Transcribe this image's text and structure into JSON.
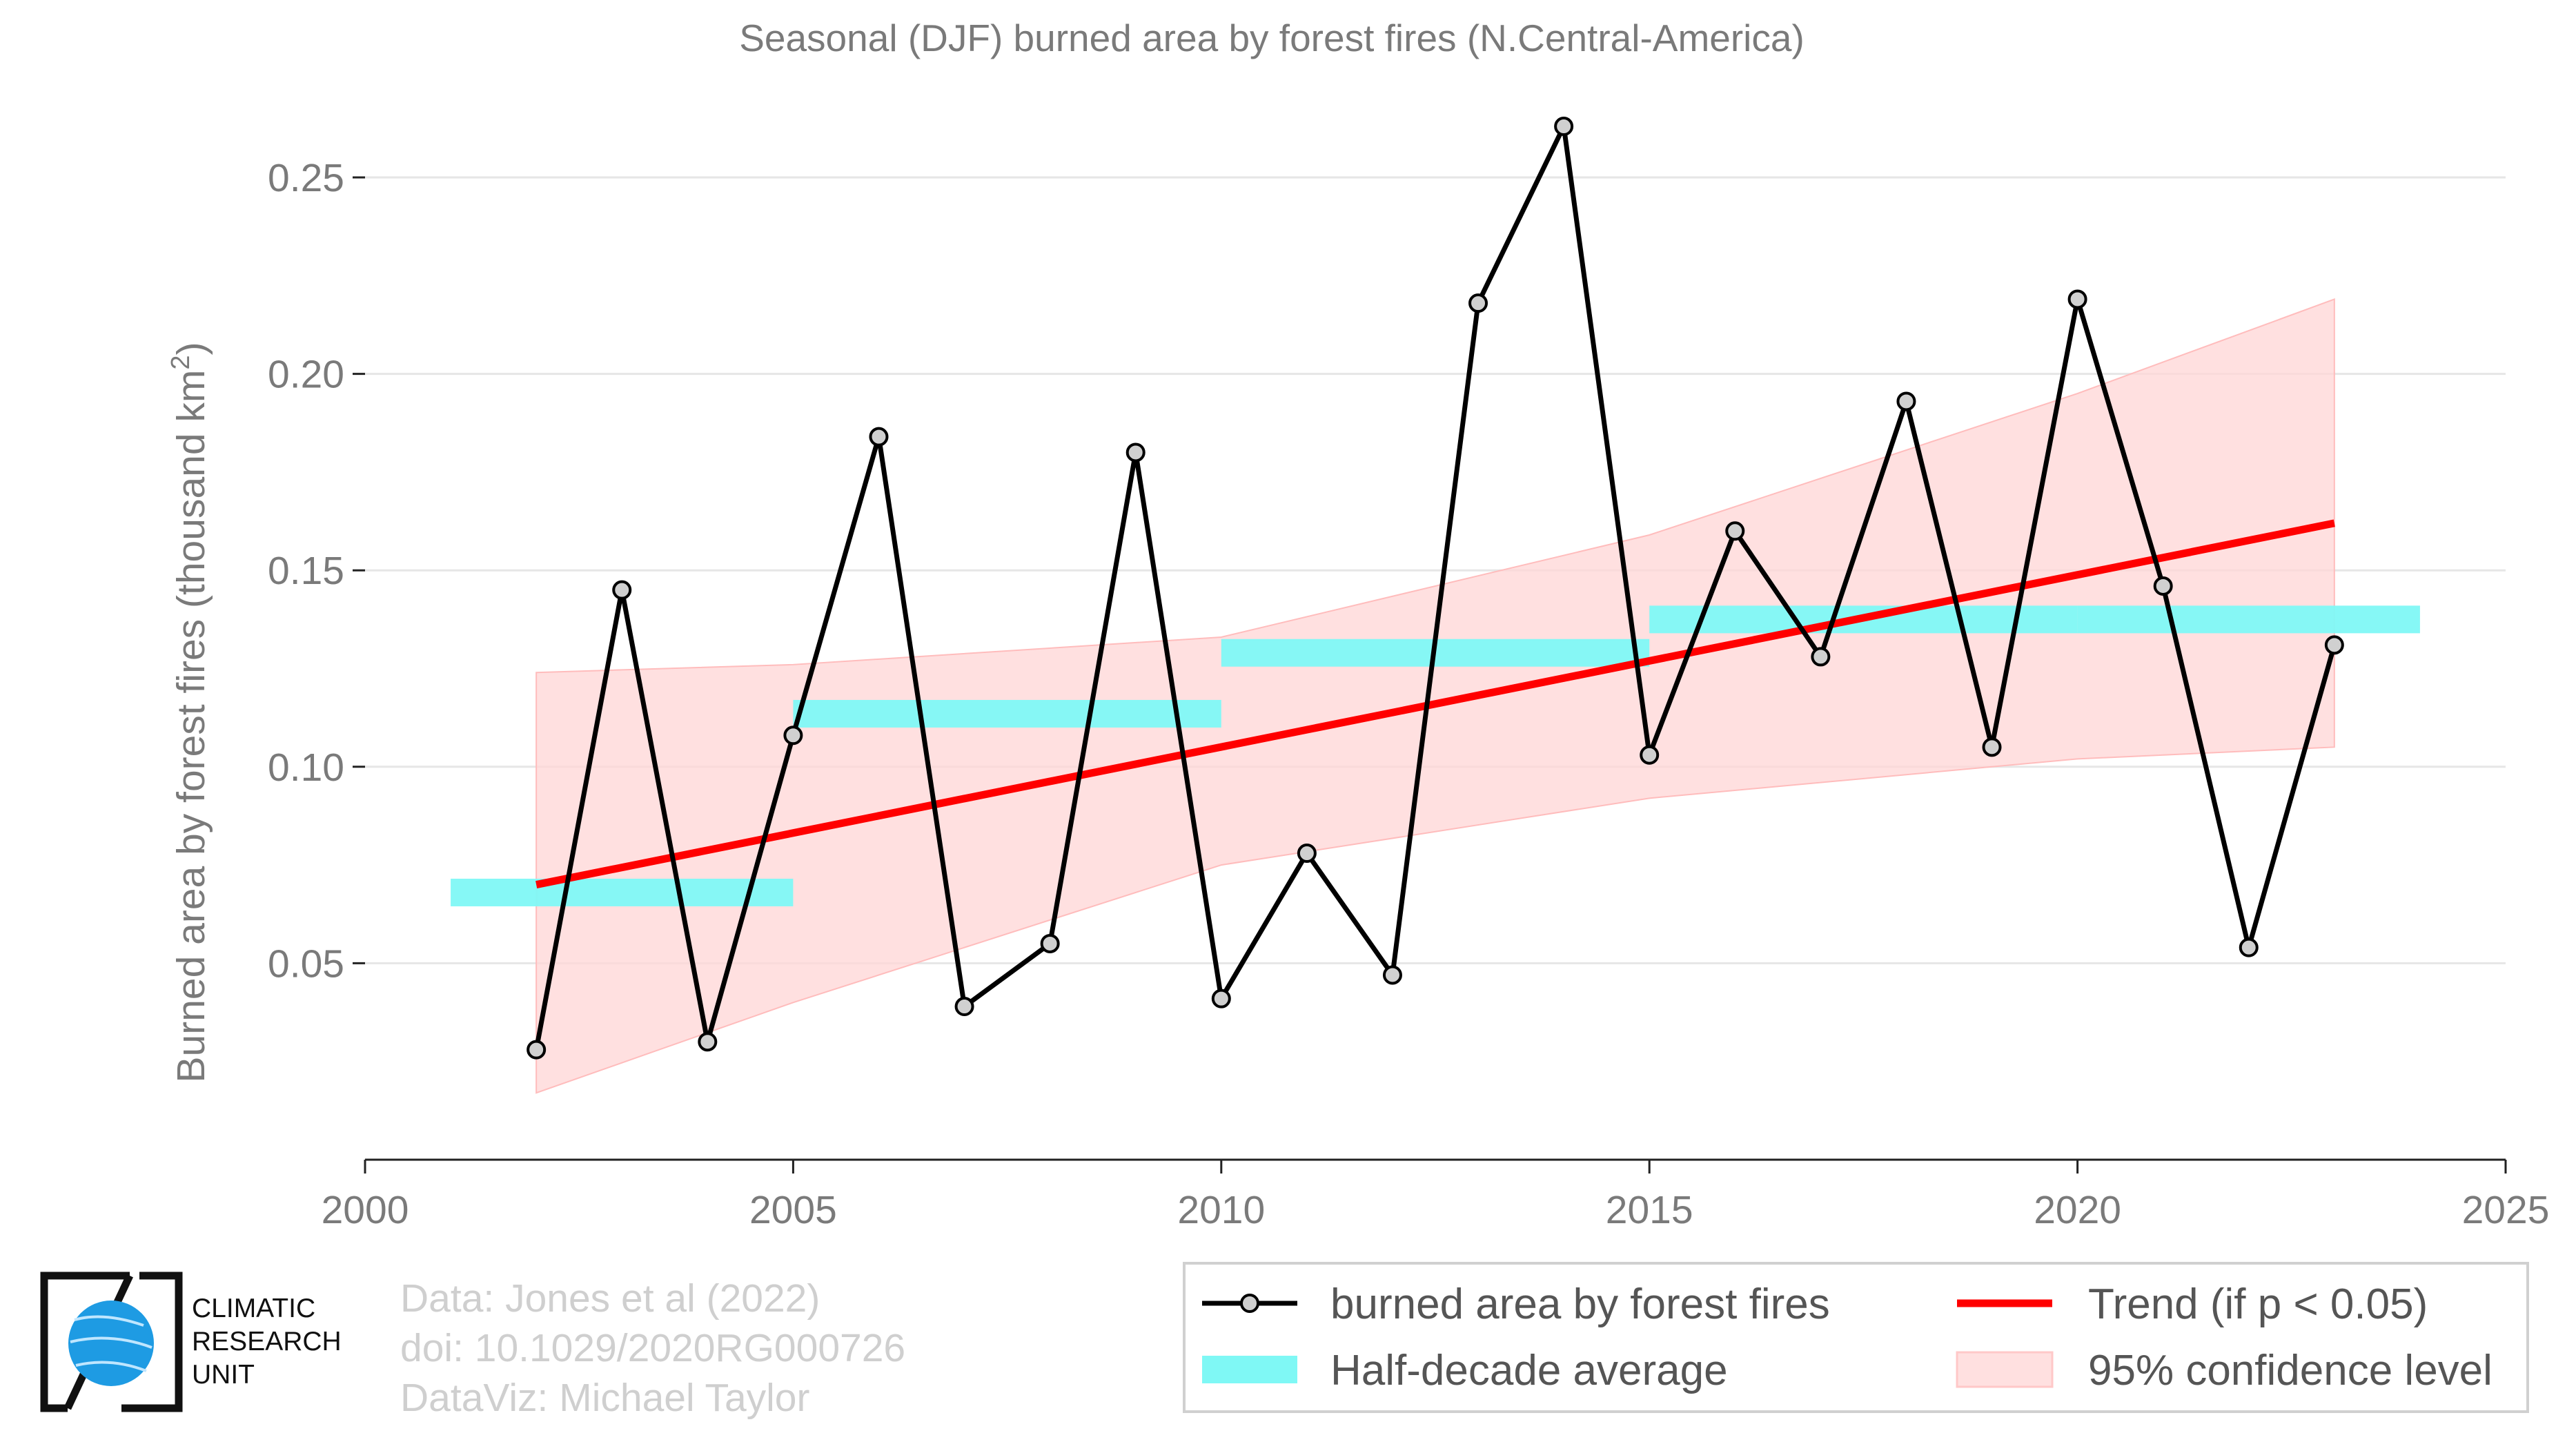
{
  "chart_data": {
    "type": "line",
    "title": "Seasonal (DJF) burned area by forest fires (N.Central-America)",
    "ylabel_main": "Burned area by forest fires (thousand km",
    "ylabel_sup": "2",
    "ylabel_close": ")",
    "xlim": [
      2000,
      2025
    ],
    "ylim": [
      0.0,
      0.2688
    ],
    "xticks": [
      2000,
      2005,
      2010,
      2015,
      2020,
      2025
    ],
    "yticks": [
      0.05,
      0.1,
      0.15,
      0.2,
      0.25
    ],
    "ytick_labels": [
      "0.05",
      "0.10",
      "0.15",
      "0.20",
      "0.25"
    ],
    "grid": true,
    "series": [
      {
        "name": "burned area by forest fires",
        "color": "#000000",
        "x": [
          2002,
          2003,
          2004,
          2005,
          2006,
          2007,
          2008,
          2009,
          2010,
          2011,
          2012,
          2013,
          2014,
          2015,
          2016,
          2017,
          2018,
          2019,
          2020,
          2021,
          2022,
          2023
        ],
        "y": [
          0.028,
          0.145,
          0.03,
          0.108,
          0.184,
          0.039,
          0.055,
          0.18,
          0.041,
          0.078,
          0.047,
          0.218,
          0.263,
          0.103,
          0.16,
          0.128,
          0.193,
          0.105,
          0.219,
          0.146,
          0.054,
          0.131
        ]
      }
    ],
    "half_decade_average": {
      "name": "Half-decade average",
      "color": "#7ff8f5",
      "segments": [
        {
          "x0": 2001,
          "x1": 2005,
          "y": 0.068
        },
        {
          "x0": 2005,
          "x1": 2010,
          "y": 0.1135
        },
        {
          "x0": 2010,
          "x1": 2015,
          "y": 0.129
        },
        {
          "x0": 2015,
          "x1": 2020,
          "y": 0.1375
        },
        {
          "x0": 2020,
          "x1": 2024,
          "y": 0.1375
        }
      ]
    },
    "trend": {
      "name": "Trend (if p < 0.05)",
      "color": "#ff0000",
      "x": [
        2002,
        2023
      ],
      "y": [
        0.07,
        0.162
      ]
    },
    "confidence_band": {
      "name": "95% confidence level",
      "color": "#ffd6d6",
      "x": [
        2002,
        2005,
        2010,
        2015,
        2020,
        2023
      ],
      "lower": [
        0.017,
        0.04,
        0.075,
        0.092,
        0.102,
        0.105
      ],
      "upper": [
        0.124,
        0.126,
        0.133,
        0.159,
        0.195,
        0.219
      ]
    },
    "legend_placement": "bottom-right"
  },
  "credits": {
    "line1": "Data: Jones et al (2022)",
    "line2": "doi: 10.1029/2020RG000726",
    "line3": "DataViz: Michael Taylor"
  },
  "logo": {
    "line1": "CLIMATIC",
    "line2": "RESEARCH",
    "line3": "UNIT"
  }
}
